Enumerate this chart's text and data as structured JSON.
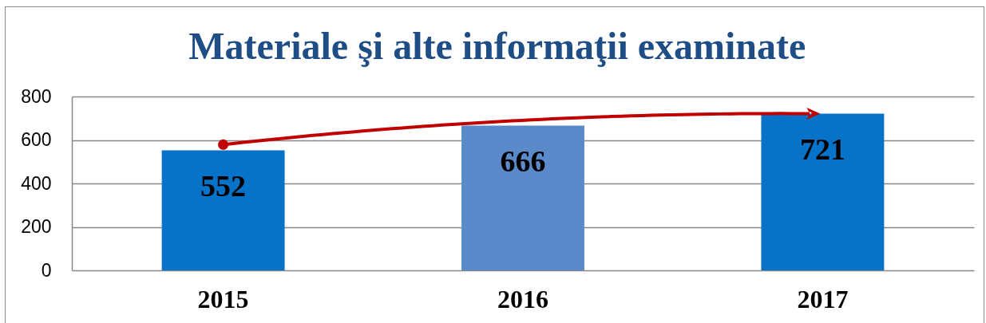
{
  "chart_data": {
    "type": "bar",
    "title": "Materiale şi alte informaţii examinate",
    "categories": [
      "2015",
      "2016",
      "2017"
    ],
    "values": [
      552,
      666,
      721
    ],
    "colors": [
      "#0673c9",
      "#5a8ac9",
      "#0673c9"
    ],
    "ylim": [
      0,
      800
    ],
    "yticks": [
      0,
      200,
      400,
      600,
      800
    ],
    "grid": "y",
    "data_labels": true
  }
}
